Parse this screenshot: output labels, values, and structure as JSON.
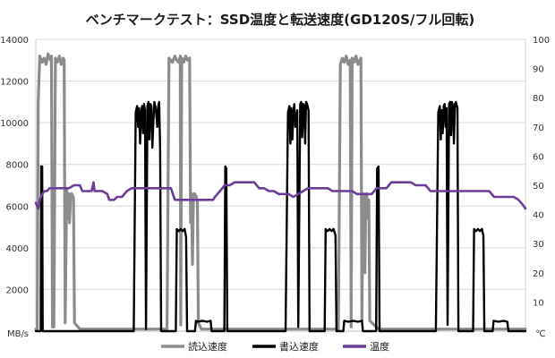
{
  "chart_data": {
    "type": "line",
    "title": "ベンチマークテスト：SSD温度と転送速度(GD120S/フル回転)",
    "y_left": {
      "min": 0,
      "max": 14000,
      "ticks": [
        2000,
        4000,
        6000,
        8000,
        10000,
        12000,
        14000
      ],
      "unit": "MB/s"
    },
    "y_right": {
      "min": 0,
      "max": 100,
      "ticks": [
        10,
        20,
        30,
        40,
        50,
        60,
        70,
        80,
        90,
        100
      ],
      "unit": "℃"
    },
    "x_range": [
      0,
      1000
    ],
    "legend_position": "bottom",
    "grid": true,
    "series": [
      {
        "name": "読込速度",
        "color": "#8c8c8c",
        "axis": "left",
        "points": [
          [
            0,
            100
          ],
          [
            3,
            100
          ],
          [
            5,
            11000
          ],
          [
            8,
            13200
          ],
          [
            13,
            12900
          ],
          [
            17,
            13100
          ],
          [
            21,
            12800
          ],
          [
            25,
            13300
          ],
          [
            30,
            13000
          ],
          [
            32,
            13200
          ],
          [
            34,
            200
          ],
          [
            37,
            200
          ],
          [
            40,
            13100
          ],
          [
            44,
            12900
          ],
          [
            48,
            13200
          ],
          [
            52,
            12800
          ],
          [
            56,
            13100
          ],
          [
            58,
            13000
          ],
          [
            60,
            400
          ],
          [
            63,
            6800
          ],
          [
            65,
            5400
          ],
          [
            67,
            6600
          ],
          [
            69,
            5200
          ],
          [
            71,
            6400
          ],
          [
            73,
            6600
          ],
          [
            75,
            6500
          ],
          [
            77,
            6400
          ],
          [
            79,
            400
          ],
          [
            90,
            100
          ],
          [
            108,
            100
          ],
          [
            114,
            100
          ],
          [
            268,
            100
          ],
          [
            272,
            13100
          ],
          [
            279,
            12900
          ],
          [
            284,
            13200
          ],
          [
            288,
            13000
          ],
          [
            292,
            12900
          ],
          [
            295,
            13200
          ],
          [
            296,
            300
          ],
          [
            298,
            13100
          ],
          [
            302,
            12900
          ],
          [
            306,
            13200
          ],
          [
            310,
            13000
          ],
          [
            314,
            13100
          ],
          [
            316,
            5200
          ],
          [
            318,
            6600
          ],
          [
            320,
            3200
          ],
          [
            322,
            6500
          ],
          [
            324,
            6600
          ],
          [
            327,
            6500
          ],
          [
            330,
            6200
          ],
          [
            332,
            400
          ],
          [
            338,
            100
          ],
          [
            350,
            100
          ],
          [
            365,
            100
          ],
          [
            371,
            100
          ],
          [
            460,
            100
          ],
          [
            618,
            100
          ],
          [
            622,
            12800
          ],
          [
            626,
            13100
          ],
          [
            630,
            12900
          ],
          [
            634,
            13200
          ],
          [
            638,
            12800
          ],
          [
            642,
            13000
          ],
          [
            644,
            200
          ],
          [
            646,
            13100
          ],
          [
            650,
            12900
          ],
          [
            654,
            13200
          ],
          [
            658,
            12800
          ],
          [
            662,
            13000
          ],
          [
            664,
            13100
          ],
          [
            666,
            500
          ],
          [
            668,
            6600
          ],
          [
            670,
            5800
          ],
          [
            672,
            2800
          ],
          [
            674,
            6500
          ],
          [
            676,
            6600
          ],
          [
            678,
            5400
          ],
          [
            680,
            6300
          ],
          [
            682,
            500
          ],
          [
            700,
            100
          ],
          [
            720,
            100
          ],
          [
            1000,
            100
          ]
        ]
      },
      {
        "name": "書込速度",
        "color": "#000000",
        "axis": "left",
        "points": [
          [
            0,
            0
          ],
          [
            10,
            0
          ],
          [
            11,
            7900
          ],
          [
            13,
            7900
          ],
          [
            14,
            0
          ],
          [
            200,
            0
          ],
          [
            204,
            10500
          ],
          [
            207,
            10800
          ],
          [
            209,
            9800
          ],
          [
            211,
            10700
          ],
          [
            213,
            9000
          ],
          [
            215,
            10500
          ],
          [
            217,
            10800
          ],
          [
            219,
            9500
          ],
          [
            221,
            10900
          ],
          [
            223,
            10600
          ],
          [
            225,
            100
          ],
          [
            228,
            10800
          ],
          [
            230,
            11000
          ],
          [
            232,
            9200
          ],
          [
            234,
            10900
          ],
          [
            236,
            10800
          ],
          [
            238,
            8800
          ],
          [
            240,
            10000
          ],
          [
            242,
            11000
          ],
          [
            245,
            10700
          ],
          [
            248,
            9800
          ],
          [
            250,
            10800
          ],
          [
            252,
            11000
          ],
          [
            254,
            8700
          ],
          [
            256,
            0
          ],
          [
            286,
            0
          ],
          [
            288,
            4900
          ],
          [
            292,
            4800
          ],
          [
            296,
            4900
          ],
          [
            300,
            4800
          ],
          [
            304,
            4900
          ],
          [
            307,
            4500
          ],
          [
            309,
            0
          ],
          [
            325,
            0
          ],
          [
            327,
            500
          ],
          [
            331,
            450
          ],
          [
            340,
            500
          ],
          [
            350,
            450
          ],
          [
            357,
            500
          ],
          [
            359,
            0
          ],
          [
            385,
            0
          ],
          [
            387,
            7900
          ],
          [
            389,
            7800
          ],
          [
            391,
            0
          ],
          [
            510,
            0
          ],
          [
            515,
            10500
          ],
          [
            518,
            10800
          ],
          [
            520,
            9000
          ],
          [
            522,
            10700
          ],
          [
            524,
            9200
          ],
          [
            526,
            10500
          ],
          [
            528,
            10900
          ],
          [
            530,
            9800
          ],
          [
            532,
            10200
          ],
          [
            534,
            10600
          ],
          [
            536,
            200
          ],
          [
            540,
            10900
          ],
          [
            542,
            11000
          ],
          [
            544,
            9300
          ],
          [
            546,
            10900
          ],
          [
            548,
            10800
          ],
          [
            550,
            9000
          ],
          [
            552,
            11000
          ],
          [
            554,
            10900
          ],
          [
            557,
            10600
          ],
          [
            559,
            0
          ],
          [
            590,
            0
          ],
          [
            592,
            4900
          ],
          [
            596,
            4800
          ],
          [
            600,
            4900
          ],
          [
            604,
            4800
          ],
          [
            608,
            4900
          ],
          [
            612,
            4600
          ],
          [
            614,
            0
          ],
          [
            628,
            0
          ],
          [
            630,
            500
          ],
          [
            638,
            450
          ],
          [
            648,
            500
          ],
          [
            658,
            450
          ],
          [
            666,
            500
          ],
          [
            668,
            0
          ],
          [
            695,
            0
          ],
          [
            697,
            7800
          ],
          [
            700,
            7900
          ],
          [
            702,
            0
          ],
          [
            817,
            0
          ],
          [
            822,
            10500
          ],
          [
            825,
            10800
          ],
          [
            827,
            9200
          ],
          [
            829,
            10600
          ],
          [
            831,
            9500
          ],
          [
            833,
            10800
          ],
          [
            835,
            10900
          ],
          [
            837,
            9800
          ],
          [
            839,
            10700
          ],
          [
            841,
            300
          ],
          [
            844,
            10900
          ],
          [
            846,
            11000
          ],
          [
            848,
            9400
          ],
          [
            850,
            11000
          ],
          [
            852,
            10800
          ],
          [
            854,
            9000
          ],
          [
            856,
            10900
          ],
          [
            858,
            11000
          ],
          [
            861,
            10700
          ],
          [
            863,
            0
          ],
          [
            893,
            0
          ],
          [
            895,
            4900
          ],
          [
            899,
            4800
          ],
          [
            903,
            4900
          ],
          [
            907,
            4800
          ],
          [
            911,
            4900
          ],
          [
            914,
            4600
          ],
          [
            916,
            0
          ],
          [
            933,
            0
          ],
          [
            935,
            500
          ],
          [
            945,
            450
          ],
          [
            955,
            500
          ],
          [
            963,
            450
          ],
          [
            965,
            0
          ],
          [
            1000,
            0
          ]
        ]
      },
      {
        "name": "温度",
        "color": "#6a3d9a",
        "axis": "right",
        "points": [
          [
            0,
            44
          ],
          [
            5,
            42
          ],
          [
            8,
            45
          ],
          [
            13,
            47
          ],
          [
            18,
            48
          ],
          [
            23,
            48
          ],
          [
            28,
            49
          ],
          [
            38,
            49
          ],
          [
            48,
            49
          ],
          [
            58,
            49
          ],
          [
            68,
            49
          ],
          [
            78,
            50
          ],
          [
            85,
            50
          ],
          [
            90,
            50
          ],
          [
            95,
            48
          ],
          [
            100,
            48
          ],
          [
            105,
            48
          ],
          [
            111,
            48
          ],
          [
            114,
            48
          ],
          [
            118,
            51
          ],
          [
            120,
            48
          ],
          [
            126,
            48
          ],
          [
            136,
            48
          ],
          [
            146,
            47
          ],
          [
            150,
            45
          ],
          [
            156,
            45
          ],
          [
            160,
            45
          ],
          [
            166,
            46
          ],
          [
            176,
            46
          ],
          [
            186,
            48
          ],
          [
            196,
            49
          ],
          [
            206,
            49
          ],
          [
            216,
            49
          ],
          [
            226,
            49
          ],
          [
            236,
            49
          ],
          [
            246,
            49
          ],
          [
            256,
            49
          ],
          [
            266,
            49
          ],
          [
            276,
            49
          ],
          [
            284,
            45
          ],
          [
            296,
            45
          ],
          [
            306,
            45
          ],
          [
            316,
            45
          ],
          [
            326,
            45
          ],
          [
            336,
            45
          ],
          [
            346,
            45
          ],
          [
            356,
            45
          ],
          [
            362,
            45
          ],
          [
            366,
            46
          ],
          [
            376,
            48
          ],
          [
            386,
            50
          ],
          [
            396,
            50
          ],
          [
            406,
            51
          ],
          [
            416,
            51
          ],
          [
            426,
            51
          ],
          [
            436,
            51
          ],
          [
            446,
            51
          ],
          [
            456,
            49
          ],
          [
            466,
            49
          ],
          [
            476,
            48
          ],
          [
            486,
            48
          ],
          [
            496,
            47
          ],
          [
            506,
            47
          ],
          [
            516,
            47
          ],
          [
            526,
            46
          ],
          [
            536,
            47
          ],
          [
            546,
            48
          ],
          [
            556,
            49
          ],
          [
            566,
            49
          ],
          [
            576,
            49
          ],
          [
            586,
            49
          ],
          [
            596,
            49
          ],
          [
            606,
            48
          ],
          [
            616,
            48
          ],
          [
            626,
            48
          ],
          [
            636,
            48
          ],
          [
            646,
            48
          ],
          [
            656,
            47
          ],
          [
            666,
            47
          ],
          [
            676,
            47
          ],
          [
            686,
            47
          ],
          [
            696,
            49
          ],
          [
            706,
            49
          ],
          [
            716,
            49
          ],
          [
            726,
            51
          ],
          [
            736,
            51
          ],
          [
            746,
            51
          ],
          [
            756,
            51
          ],
          [
            766,
            51
          ],
          [
            776,
            50
          ],
          [
            786,
            50
          ],
          [
            796,
            50
          ],
          [
            806,
            48
          ],
          [
            816,
            48
          ],
          [
            826,
            48
          ],
          [
            836,
            48
          ],
          [
            846,
            48
          ],
          [
            856,
            48
          ],
          [
            866,
            48
          ],
          [
            876,
            48
          ],
          [
            886,
            48
          ],
          [
            896,
            48
          ],
          [
            906,
            48
          ],
          [
            916,
            48
          ],
          [
            926,
            48
          ],
          [
            936,
            46
          ],
          [
            946,
            46
          ],
          [
            956,
            46
          ],
          [
            966,
            46
          ],
          [
            976,
            46
          ],
          [
            986,
            45
          ],
          [
            996,
            43
          ],
          [
            1000,
            42
          ]
        ]
      }
    ]
  }
}
